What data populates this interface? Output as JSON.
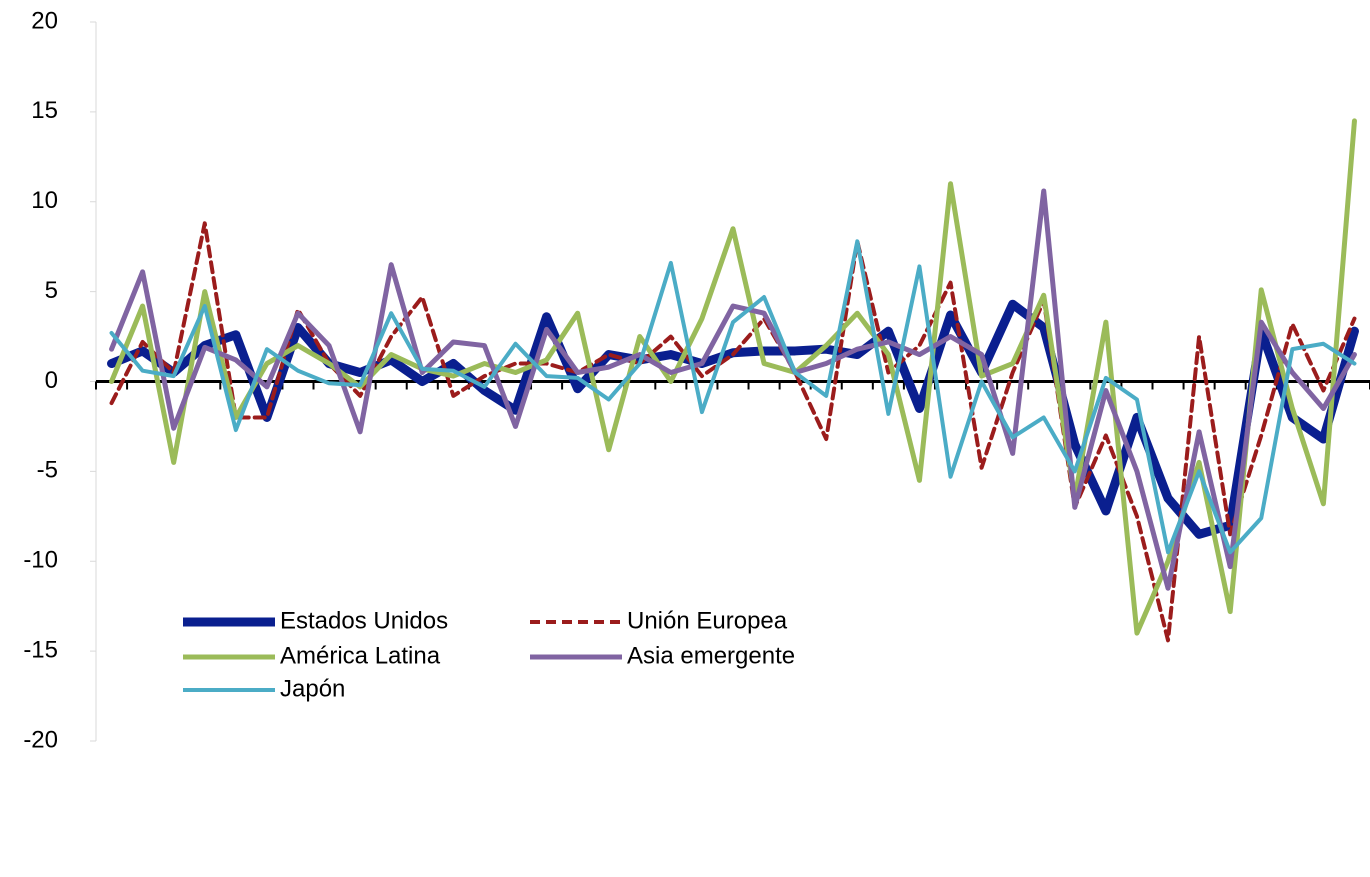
{
  "chart_data": {
    "type": "line",
    "categories": [
      null,
      null,
      null,
      null,
      null,
      null,
      null,
      null,
      null,
      null,
      null,
      null,
      null,
      null,
      null,
      null,
      null,
      null,
      null,
      null,
      null,
      null,
      null,
      null,
      null,
      null,
      null,
      null,
      null,
      null,
      null,
      null,
      null,
      null,
      null,
      null,
      null,
      null,
      null,
      null,
      null
    ],
    "series": [
      {
        "name": "Estados Unidos",
        "color": "#0a1f8f",
        "values": [
          1.0,
          1.7,
          0.5,
          2.0,
          2.6,
          -2.0,
          3.0,
          1.0,
          0.5,
          1.2,
          0,
          1.0,
          -0.5,
          -1.6,
          3.6,
          -0.4,
          1.5,
          1.2,
          1.5,
          1.0,
          1.6,
          1.7,
          1.7,
          1.8,
          1.5,
          2.8,
          -1.5,
          3.7,
          0.5,
          4.3,
          3.0,
          -3.5,
          -7.2,
          -2.0,
          -6.5,
          -8.5,
          -8.0,
          2.8,
          -2.0,
          -3.2,
          2.8
        ]
      },
      {
        "name": "Unión Europea",
        "color": "#9b1c1c",
        "values": [
          -1.2,
          2.2,
          0.5,
          8.8,
          -2.0,
          -2.0,
          4.0,
          1.0,
          -0.8,
          2.5,
          4.7,
          -0.8,
          0.3,
          1.0,
          1.0,
          0.5,
          1.5,
          1.0,
          2.5,
          0.3,
          1.5,
          3.5,
          0.5,
          -3.2,
          7.8,
          0.5,
          2.0,
          5.5,
          -4.8,
          0.5,
          4.5,
          -7.0,
          -3.0,
          -7.5,
          -14.4,
          2.5,
          -8.5,
          -3.0,
          3.2,
          -0.5,
          3.5
        ]
      },
      {
        "name": "América Latina",
        "color": "#9bbb59",
        "values": [
          0,
          4.2,
          -4.5,
          5.0,
          -2.0,
          1.0,
          2.0,
          1.0,
          -0.3,
          1.5,
          0.7,
          0.3,
          1.0,
          0.5,
          1.2,
          3.8,
          -3.8,
          2.5,
          0,
          3.5,
          8.5,
          1.0,
          0.5,
          2.0,
          3.8,
          1.5,
          -5.5,
          11.0,
          0.3,
          1.0,
          4.8,
          -6.5,
          3.3,
          -14.0,
          -10.0,
          -4.5,
          -12.8,
          5.1,
          -1.5,
          -6.8,
          14.5
        ]
      },
      {
        "name": "Asia emergente",
        "color": "#8064a2",
        "values": [
          1.8,
          6.1,
          -2.6,
          1.9,
          1.2,
          -0.3,
          3.8,
          2.0,
          -2.8,
          6.5,
          0.5,
          2.2,
          2.0,
          -2.5,
          2.9,
          0.5,
          0.8,
          1.5,
          0.5,
          1.0,
          4.2,
          3.8,
          0.5,
          1.0,
          1.8,
          2.2,
          1.5,
          2.5,
          1.5,
          -4.0,
          10.6,
          -7.0,
          -0.5,
          -5.0,
          -11.5,
          -2.8,
          -10.3,
          3.3,
          0.5,
          -1.5,
          1.5
        ]
      },
      {
        "name": "Japón",
        "color": "#4bacc6",
        "values": [
          2.7,
          0.6,
          0.3,
          4.2,
          -2.7,
          1.8,
          0.6,
          -0.1,
          -0.2,
          3.8,
          0.7,
          0.6,
          -0.3,
          2.1,
          0.3,
          0.2,
          -1.0,
          1.0,
          6.6,
          -1.7,
          3.3,
          4.7,
          0.5,
          -0.8,
          7.8,
          -1.8,
          6.4,
          -5.3,
          0,
          -3.1,
          -2.0,
          -5.0,
          0.2,
          -1.0,
          -9.5,
          -5.0,
          -9.5,
          -7.6,
          1.8,
          2.1,
          1.0
        ]
      }
    ],
    "ylim": [
      -20,
      20
    ],
    "yticks": [
      -20,
      -15,
      -10,
      -5,
      0,
      5,
      10,
      15,
      20
    ],
    "grid": false,
    "legend": "lower-left"
  }
}
